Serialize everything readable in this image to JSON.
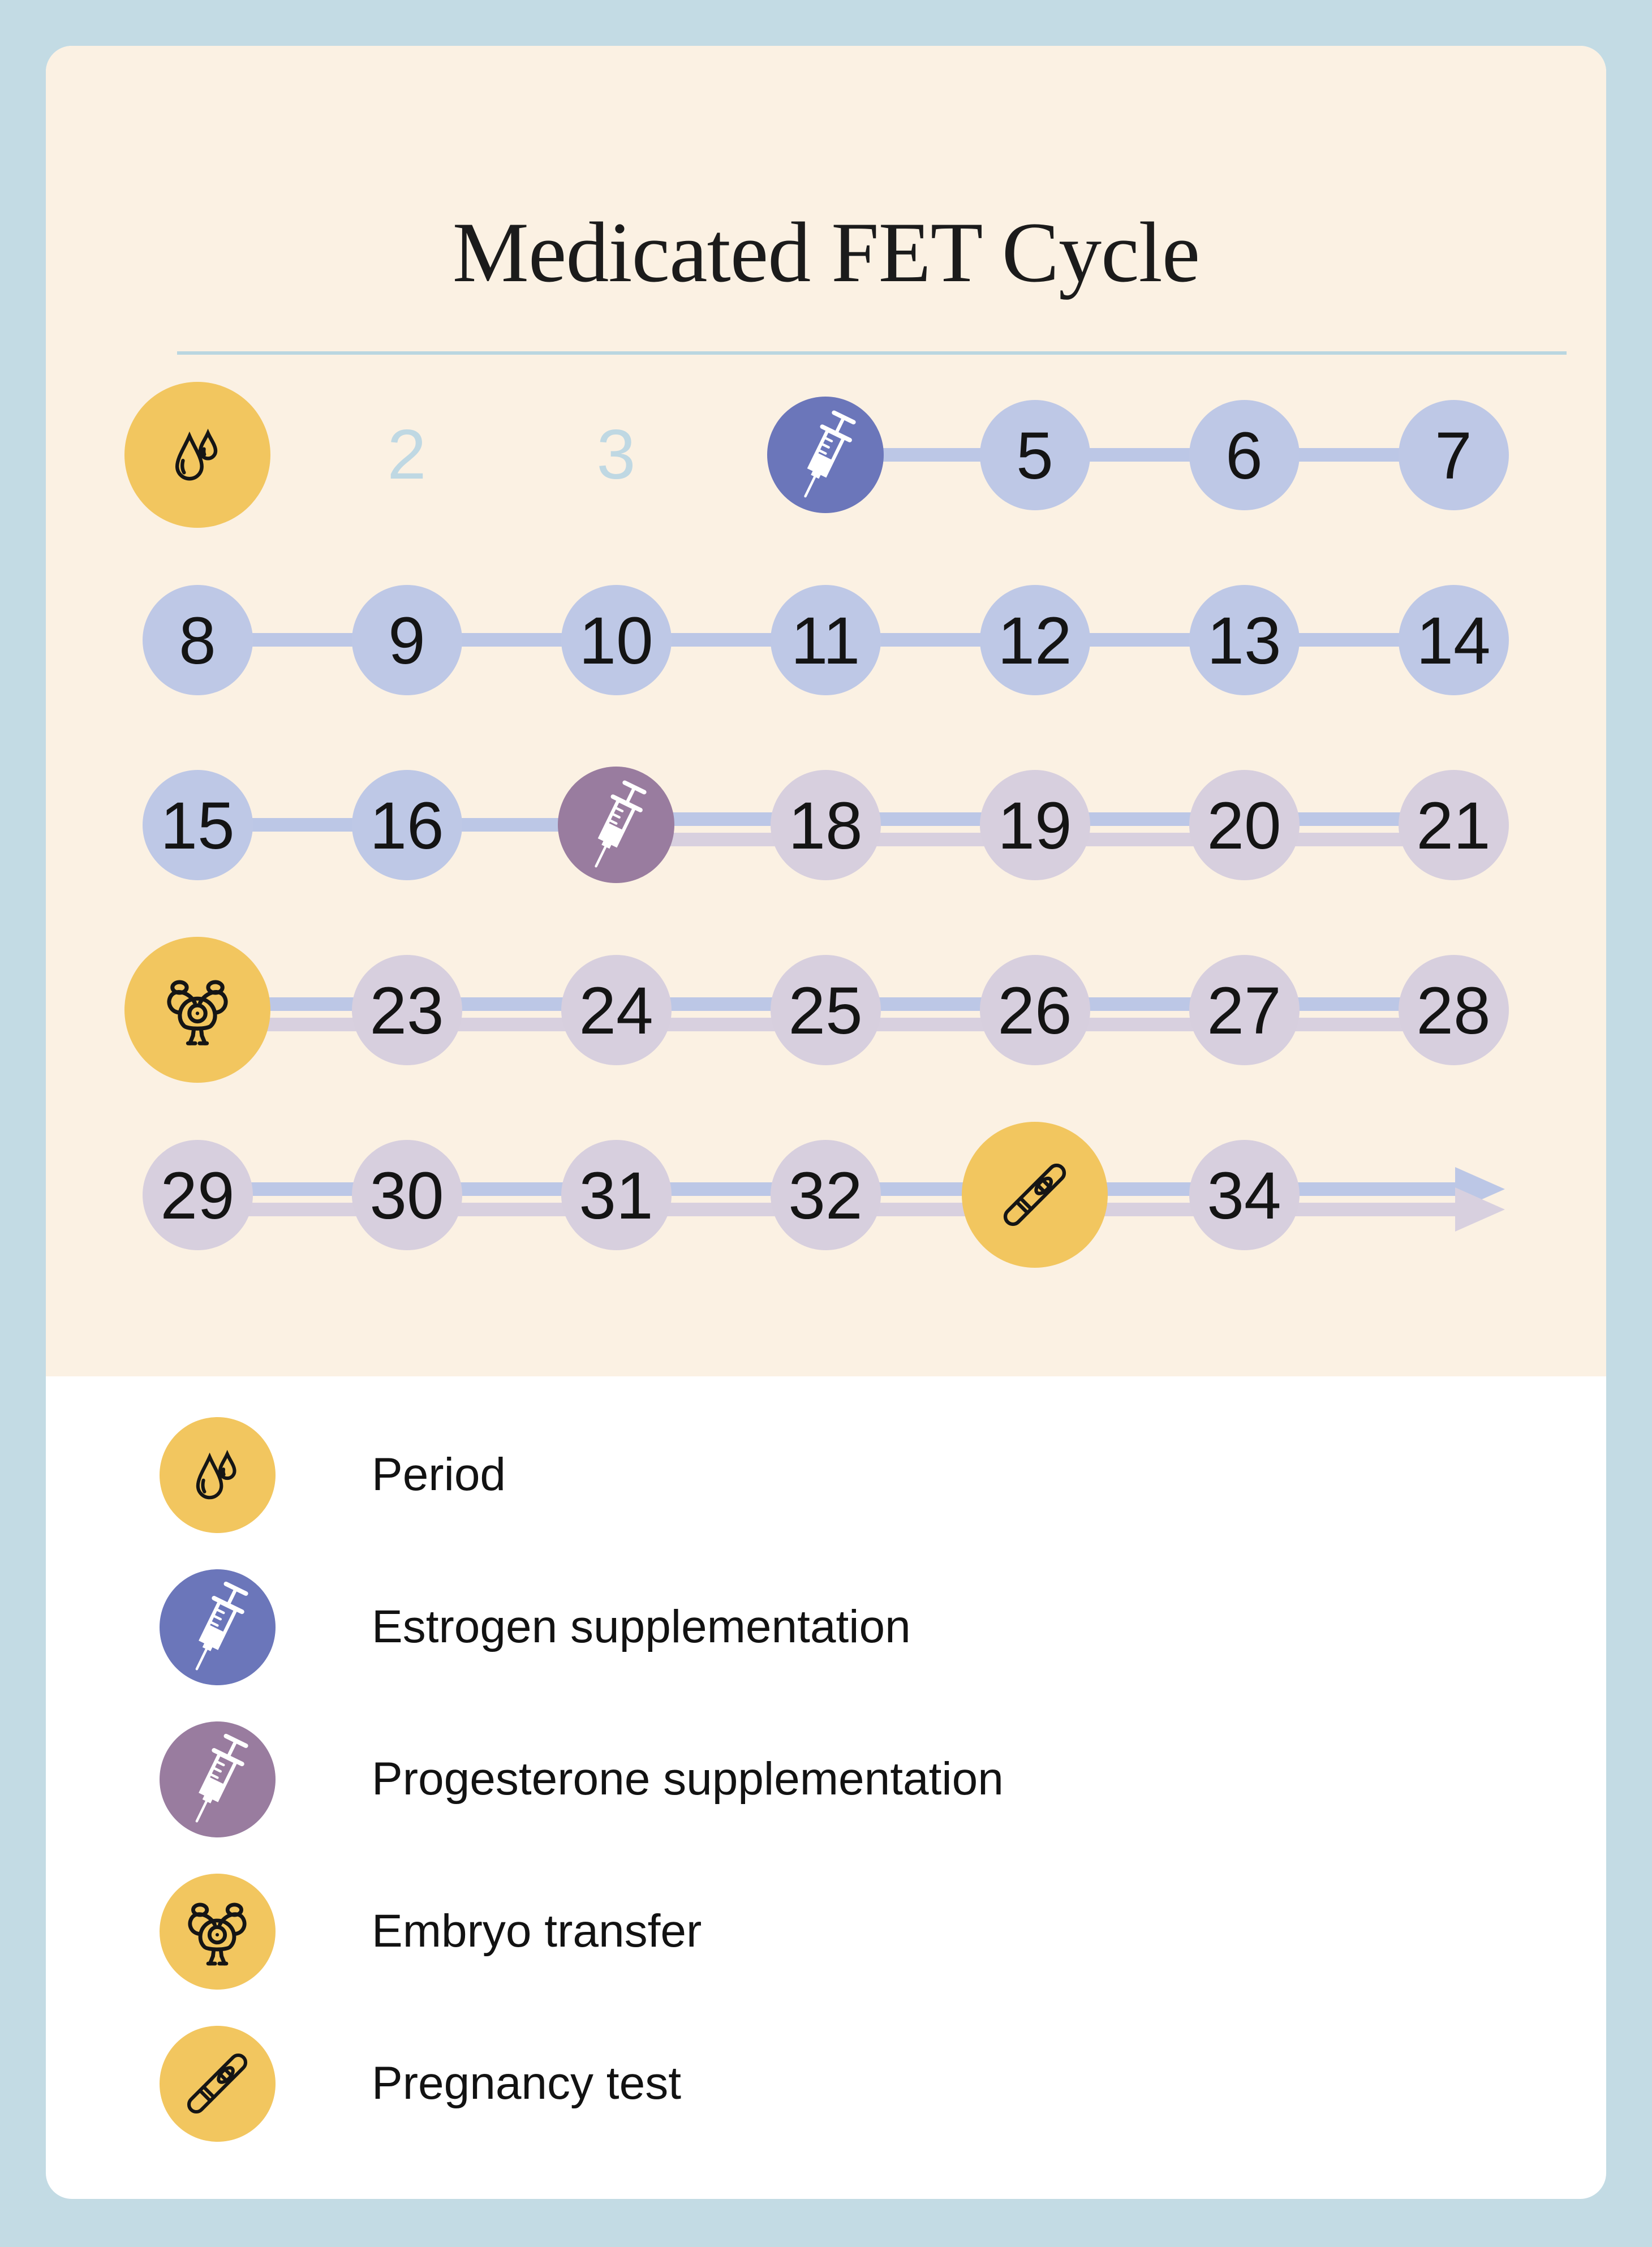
{
  "title": "Medicated FET Cycle",
  "colors": {
    "page_background": "#c3dbe4",
    "card_cream": "#fbf1e3",
    "card_white": "#ffffff",
    "divider": "#b9d6e0",
    "circle_periwinkle": "#bec8e6",
    "circle_lavender": "#d7cfde",
    "circle_yellow": "#f2c65f",
    "circle_estrogen": "#6b76ba",
    "circle_progesterone": "#997c9f",
    "connector_estrogen": "#bcc7e6",
    "connector_progesterone": "#d8d0df",
    "day_number_text": "#141414",
    "upcoming_day_text": "#bfd8e3",
    "icon_stroke_dark": "#151515",
    "icon_stroke_light": "#ffffff"
  },
  "timeline": {
    "days": [
      {
        "day": 1,
        "kind": "period"
      },
      {
        "day": 2,
        "kind": "upcoming",
        "label": "2"
      },
      {
        "day": 3,
        "kind": "upcoming",
        "label": "3"
      },
      {
        "day": 4,
        "kind": "estrogen_injection"
      },
      {
        "day": 5,
        "kind": "estrogen_phase",
        "label": "5"
      },
      {
        "day": 6,
        "kind": "estrogen_phase",
        "label": "6"
      },
      {
        "day": 7,
        "kind": "estrogen_phase",
        "label": "7"
      },
      {
        "day": 8,
        "kind": "estrogen_phase",
        "label": "8"
      },
      {
        "day": 9,
        "kind": "estrogen_phase",
        "label": "9"
      },
      {
        "day": 10,
        "kind": "estrogen_phase",
        "label": "10"
      },
      {
        "day": 11,
        "kind": "estrogen_phase",
        "label": "11"
      },
      {
        "day": 12,
        "kind": "estrogen_phase",
        "label": "12"
      },
      {
        "day": 13,
        "kind": "estrogen_phase",
        "label": "13"
      },
      {
        "day": 14,
        "kind": "estrogen_phase",
        "label": "14"
      },
      {
        "day": 15,
        "kind": "estrogen_phase",
        "label": "15"
      },
      {
        "day": 16,
        "kind": "estrogen_phase",
        "label": "16"
      },
      {
        "day": 17,
        "kind": "progesterone_injection"
      },
      {
        "day": 18,
        "kind": "progesterone_phase",
        "label": "18"
      },
      {
        "day": 19,
        "kind": "progesterone_phase",
        "label": "19"
      },
      {
        "day": 20,
        "kind": "progesterone_phase",
        "label": "20"
      },
      {
        "day": 21,
        "kind": "progesterone_phase",
        "label": "21"
      },
      {
        "day": 22,
        "kind": "embryo_transfer"
      },
      {
        "day": 23,
        "kind": "progesterone_phase",
        "label": "23"
      },
      {
        "day": 24,
        "kind": "progesterone_phase",
        "label": "24"
      },
      {
        "day": 25,
        "kind": "progesterone_phase",
        "label": "25"
      },
      {
        "day": 26,
        "kind": "progesterone_phase",
        "label": "26"
      },
      {
        "day": 27,
        "kind": "progesterone_phase",
        "label": "27"
      },
      {
        "day": 28,
        "kind": "progesterone_phase",
        "label": "28"
      },
      {
        "day": 29,
        "kind": "progesterone_phase",
        "label": "29"
      },
      {
        "day": 30,
        "kind": "progesterone_phase",
        "label": "30"
      },
      {
        "day": 31,
        "kind": "progesterone_phase",
        "label": "31"
      },
      {
        "day": 32,
        "kind": "progesterone_phase",
        "label": "32"
      },
      {
        "day": 33,
        "kind": "pregnancy_test"
      },
      {
        "day": 34,
        "kind": "progesterone_phase",
        "label": "34"
      }
    ],
    "connections": [
      {
        "from_day": 4,
        "to_day": 7,
        "tracks": [
          "estrogen"
        ]
      },
      {
        "from_day": 8,
        "to_day": 14,
        "tracks": [
          "estrogen"
        ]
      },
      {
        "from_day": 15,
        "to_day": 17,
        "tracks": [
          "estrogen"
        ]
      },
      {
        "from_day": 17,
        "to_day": 21,
        "tracks": [
          "estrogen",
          "progesterone"
        ]
      },
      {
        "from_day": 22,
        "to_day": 28,
        "tracks": [
          "estrogen",
          "progesterone"
        ]
      },
      {
        "from_day": 29,
        "to_day": 34,
        "tracks": [
          "estrogen",
          "progesterone"
        ]
      },
      {
        "from_day": 34,
        "continues_to_arrow": true,
        "tracks": [
          "estrogen",
          "progesterone"
        ]
      }
    ]
  },
  "legend": {
    "items": [
      {
        "icon": "period-droplets-icon",
        "circle_color_key": "circle_yellow",
        "icon_style": "dark",
        "label": "Period"
      },
      {
        "icon": "estrogen-syringe-icon",
        "circle_color_key": "circle_estrogen",
        "icon_style": "light",
        "label": "Estrogen supplementation"
      },
      {
        "icon": "progesterone-syringe-icon",
        "circle_color_key": "circle_progesterone",
        "icon_style": "light",
        "label": "Progesterone supplementation"
      },
      {
        "icon": "embryo-transfer-icon",
        "circle_color_key": "circle_yellow",
        "icon_style": "dark",
        "label": "Embryo transfer"
      },
      {
        "icon": "pregnancy-test-icon",
        "circle_color_key": "circle_yellow",
        "icon_style": "dark",
        "label": "Pregnancy test"
      }
    ]
  }
}
